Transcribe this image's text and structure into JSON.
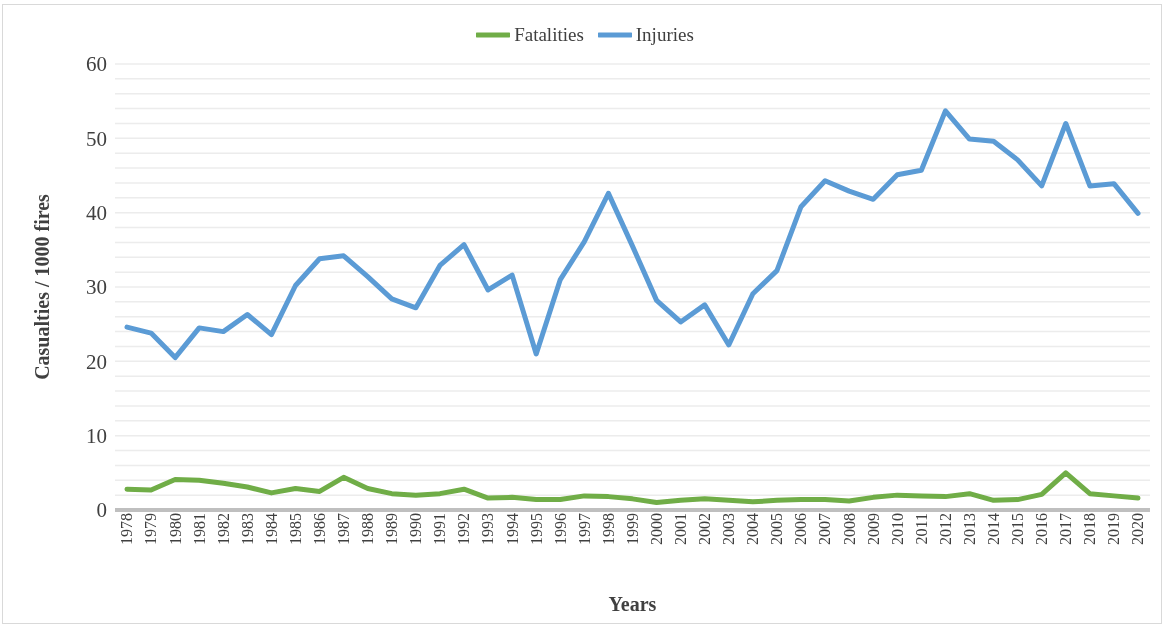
{
  "chart_data": {
    "type": "line",
    "xlabel": "Years",
    "ylabel": "Casualties / 1000 fires",
    "categories": [
      "1978",
      "1979",
      "1980",
      "1981",
      "1982",
      "1983",
      "1984",
      "1985",
      "1986",
      "1987",
      "1988",
      "1989",
      "1990",
      "1991",
      "1992",
      "1993",
      "1994",
      "1995",
      "1996",
      "1997",
      "1998",
      "1999",
      "2000",
      "2001",
      "2002",
      "2003",
      "2004",
      "2005",
      "2006",
      "2007",
      "2008",
      "2009",
      "2010",
      "2011",
      "2012",
      "2013",
      "2014",
      "2015",
      "2016",
      "2017",
      "2018",
      "2019",
      "2020"
    ],
    "series": [
      {
        "name": "Fatalities",
        "color": "#70ad47",
        "values": [
          2.8,
          2.7,
          4.1,
          4.0,
          3.6,
          3.1,
          2.3,
          2.9,
          2.5,
          4.4,
          2.9,
          2.2,
          2.0,
          2.2,
          2.8,
          1.6,
          1.7,
          1.4,
          1.4,
          1.9,
          1.8,
          1.5,
          1.0,
          1.3,
          1.5,
          1.3,
          1.1,
          1.3,
          1.4,
          1.4,
          1.2,
          1.7,
          2.0,
          1.9,
          1.8,
          2.2,
          1.3,
          1.4,
          2.1,
          5.0,
          2.2,
          1.9,
          1.6
        ]
      },
      {
        "name": "Injuries",
        "color": "#5b9bd5",
        "values": [
          24.6,
          23.8,
          20.5,
          24.5,
          24.0,
          26.3,
          23.6,
          30.2,
          33.8,
          34.2,
          31.4,
          28.4,
          27.2,
          32.9,
          35.7,
          29.6,
          31.6,
          21.0,
          31.0,
          36.1,
          42.6,
          35.5,
          28.2,
          25.3,
          27.6,
          22.2,
          29.1,
          32.2,
          40.8,
          44.3,
          42.9,
          41.8,
          45.1,
          45.7,
          53.7,
          49.9,
          49.6,
          47.1,
          43.6,
          52.0,
          43.6,
          43.9,
          39.9
        ]
      }
    ],
    "ylim": [
      0,
      60
    ],
    "yticks": [
      0,
      {
        "value": 2,
        "label": null
      },
      {
        "value": 4,
        "label": null
      },
      {
        "value": 6,
        "label": null
      },
      {
        "value": 8,
        "label": null
      },
      10,
      {
        "value": 12,
        "label": null
      },
      {
        "value": 14,
        "label": null
      },
      {
        "value": 16,
        "label": null
      },
      {
        "value": 18,
        "label": null
      },
      20,
      {
        "value": 22,
        "label": null
      },
      {
        "value": 24,
        "label": null
      },
      {
        "value": 26,
        "label": null
      },
      {
        "value": 28,
        "label": null
      },
      30,
      {
        "value": 32,
        "label": null
      },
      {
        "value": 34,
        "label": null
      },
      {
        "value": 36,
        "label": null
      },
      {
        "value": 38,
        "label": null
      },
      40,
      {
        "value": 42,
        "label": null
      },
      {
        "value": 44,
        "label": null
      },
      {
        "value": 46,
        "label": null
      },
      {
        "value": 48,
        "label": null
      },
      50,
      {
        "value": 52,
        "label": null
      },
      {
        "value": 54,
        "label": null
      },
      {
        "value": 56,
        "label": null
      },
      {
        "value": 58,
        "label": null
      },
      60
    ],
    "grid": "y",
    "legend": "top",
    "marker": "none",
    "line_style": "solid"
  }
}
